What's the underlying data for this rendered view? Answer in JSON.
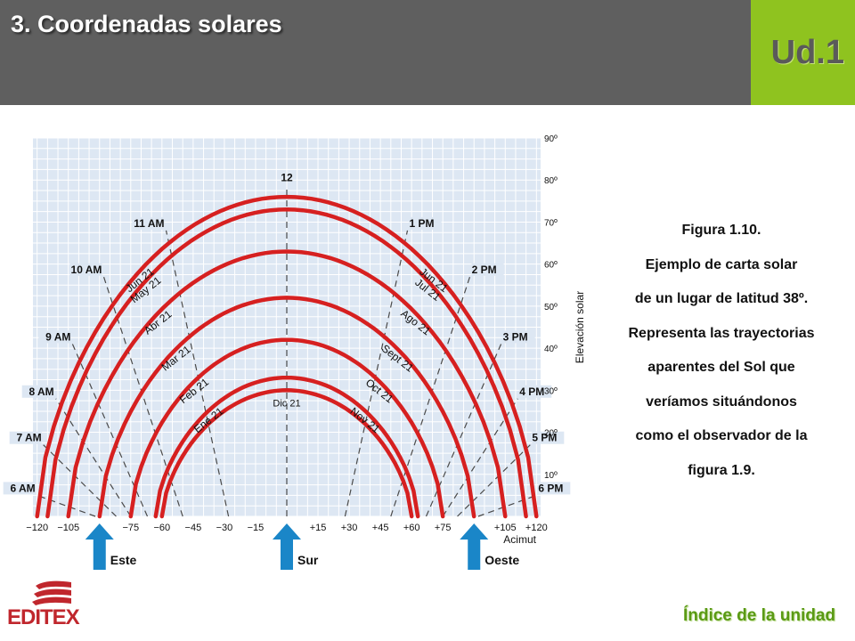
{
  "header": {
    "title": "3. Coordenadas solares",
    "unit": "Ud.1"
  },
  "chart_data": {
    "type": "line",
    "x_ticks": [
      "−120",
      "−105",
      "−75",
      "−60",
      "−45",
      "−30",
      "−15",
      "+15",
      "+30",
      "+45",
      "+60",
      "+75",
      "+105",
      "+120"
    ],
    "x_tick_values": [
      -120,
      -105,
      -75,
      -60,
      -45,
      -30,
      -15,
      15,
      30,
      45,
      60,
      75,
      105,
      120
    ],
    "y_ticks": [
      "10º",
      "20º",
      "30º",
      "40º",
      "50º",
      "60º",
      "70º",
      "80º",
      "90º"
    ],
    "y_tick_values": [
      10,
      20,
      30,
      40,
      50,
      60,
      70,
      80,
      90
    ],
    "xlim": [
      -122,
      122
    ],
    "ylim": [
      0,
      90
    ],
    "ylabel": "Elevación solar",
    "xlabel": "Acimut",
    "directions": [
      {
        "label": "Este",
        "azimuth": -90
      },
      {
        "label": "Sur",
        "azimuth": 0
      },
      {
        "label": "Oeste",
        "azimuth": 90
      }
    ],
    "series": [
      {
        "name": "Jun 21",
        "name_right": "Jun 21",
        "start_az": -120,
        "peak": 76
      },
      {
        "name": "May 21",
        "name_right": "Jul 21",
        "start_az": -115,
        "peak": 73
      },
      {
        "name": "Abr 21",
        "name_right": "Ago 21",
        "start_az": -105,
        "peak": 63
      },
      {
        "name": "Mar 21",
        "name_right": "Sept 21",
        "start_az": -90,
        "peak": 52
      },
      {
        "name": "Feb 21",
        "name_right": "Oct 21",
        "start_az": -75,
        "peak": 42
      },
      {
        "name": "Ene 21",
        "name_right": "Nov 21",
        "start_az": -63,
        "peak": 33
      },
      {
        "name": "Dic 21",
        "name_right": "",
        "start_az": -60,
        "peak": 30
      }
    ],
    "hour_lines": [
      {
        "label": "6 AM",
        "side": "left",
        "az0": -92,
        "az1": -120,
        "el1": 5
      },
      {
        "label": "7 AM",
        "side": "left",
        "az0": -82,
        "az1": -117,
        "el1": 17
      },
      {
        "label": "8 AM",
        "side": "left",
        "az0": -75,
        "az1": -111,
        "el1": 28
      },
      {
        "label": "9 AM",
        "side": "left",
        "az0": -67,
        "az1": -103,
        "el1": 41
      },
      {
        "label": "10 AM",
        "side": "left",
        "az0": -50,
        "az1": -88,
        "el1": 57
      },
      {
        "label": "11 AM",
        "side": "left",
        "az0": -28,
        "az1": -58,
        "el1": 68
      },
      {
        "label": "12",
        "side": "top",
        "az0": 0,
        "az1": 0,
        "el1": 78
      },
      {
        "label": "1 PM",
        "side": "right",
        "az0": 28,
        "az1": 58,
        "el1": 68
      },
      {
        "label": "2 PM",
        "side": "right",
        "az0": 50,
        "az1": 88,
        "el1": 57
      },
      {
        "label": "3 PM",
        "side": "right",
        "az0": 67,
        "az1": 103,
        "el1": 41
      },
      {
        "label": "4 PM",
        "side": "right",
        "az0": 75,
        "az1": 111,
        "el1": 28
      },
      {
        "label": "5 PM",
        "side": "right",
        "az0": 82,
        "az1": 117,
        "el1": 17
      },
      {
        "label": "6 PM",
        "side": "right",
        "az0": 92,
        "az1": 120,
        "el1": 5
      }
    ],
    "colors": {
      "curve": "#d62020",
      "grid": "#ffffff",
      "plot_bg": "#dde7f3",
      "arrow": "#1a86c8",
      "dash": "#4a4a4a"
    }
  },
  "caption": {
    "lines": [
      "Figura 1.10.",
      "Ejemplo de carta solar",
      "de un lugar de latitud 38º.",
      "Representa las trayectorias",
      "aparentes del Sol que",
      "veríamos situándonos",
      "como el observador de la",
      "figura 1.9."
    ]
  },
  "footer": {
    "logo": "EDITEX",
    "index_link": "Índice de la unidad"
  }
}
